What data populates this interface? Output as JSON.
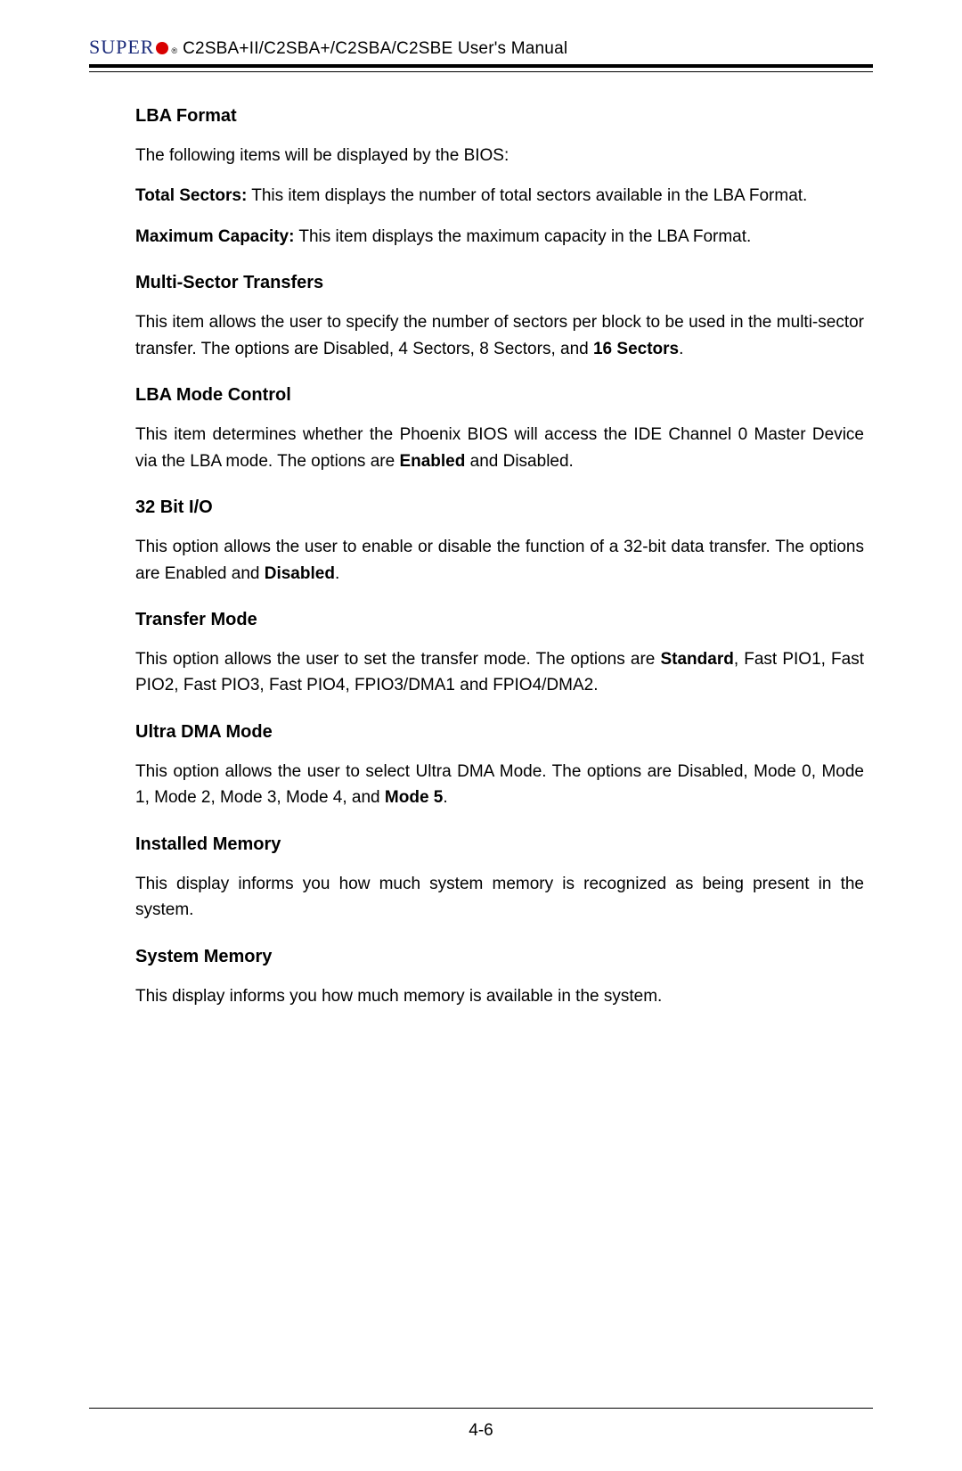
{
  "header": {
    "logo_text": "SUPER",
    "logo_color": "#1a2a7a",
    "dot_color": "#d80000",
    "title": "C2SBA+II/C2SBA+/C2SBA/C2SBE User's Manual"
  },
  "sections": {
    "lba_format": {
      "heading": "LBA Format",
      "intro": "The following items will be displayed by the BIOS:",
      "total_sectors_label": "Total Sectors:",
      "total_sectors_text": " This item displays the number of total sectors available in the LBA Format.",
      "max_capacity_label": "Maximum Capacity:",
      "max_capacity_text": " This item displays the maximum capacity in the LBA Format."
    },
    "multi_sector": {
      "heading": "Multi-Sector Transfers",
      "text_pre": "This item allows the user to specify the number of sectors per block to be used in the multi-sector transfer. The options are Disabled, 4 Sectors, 8 Sectors, and ",
      "bold": "16 Sectors",
      "text_post": "."
    },
    "lba_mode": {
      "heading": "LBA Mode Control",
      "text_pre": "This item determines whether the Phoenix BIOS will access the IDE Channel 0 Master Device via the LBA mode.  The options are ",
      "bold": "Enabled",
      "text_post": " and Disabled."
    },
    "bit32": {
      "heading": "32 Bit I/O",
      "text_pre": "This option allows the user to enable or disable the function of a 32-bit data transfer.  The options are Enabled and ",
      "bold": "Disabled",
      "text_post": "."
    },
    "transfer_mode": {
      "heading": "Transfer Mode",
      "text_pre": "This option allows the user to set the transfer mode.  The options are ",
      "bold": "Standard",
      "text_post": ", Fast PIO1, Fast PIO2, Fast PIO3, Fast PIO4, FPIO3/DMA1 and FPIO4/DMA2."
    },
    "ultra_dma": {
      "heading": "Ultra DMA Mode",
      "text_pre": "This option allows the user to select Ultra DMA Mode.  The options are Disabled, Mode 0, Mode 1, Mode 2, Mode 3, Mode 4, and ",
      "bold": "Mode 5",
      "text_post": "."
    },
    "installed_memory": {
      "heading": "Installed Memory",
      "text": "This display informs you how much system memory is recognized as being present in the system."
    },
    "system_memory": {
      "heading": "System Memory",
      "text": "This display informs you how much memory is available in the system."
    }
  },
  "footer": {
    "page_number": "4-6"
  }
}
